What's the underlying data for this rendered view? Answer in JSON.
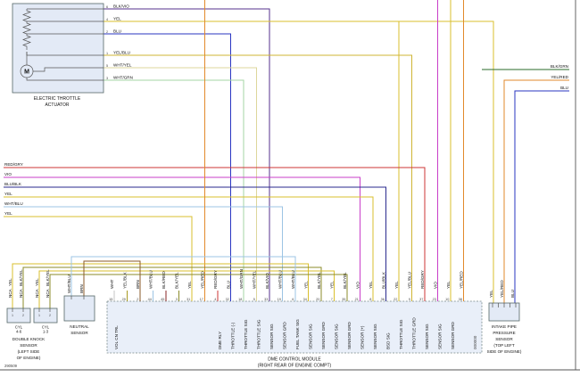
{
  "page": {
    "doc_number": "290509"
  },
  "colors": {
    "wire": {
      "WHT": "#c4c4c4",
      "BRN": "#8a5a2a",
      "YEL": "#d9bf2d",
      "YEL/BLK": "#a89a22",
      "YEL/BLU": "#cfb433",
      "YEL/RED": "#e2892b",
      "BLU": "#2a35c2",
      "BLU/BLK": "#2a2a8e",
      "BLU/YEL": "#3a55cc",
      "WHT/BLU": "#9cc4e4",
      "WHT/YEL": "#ddd79b",
      "WHT/GRN": "#a5d6a5",
      "BLK/VIO": "#56318c",
      "BLK/YEL": "#8b8b2a",
      "BLK/RED": "#8a2525",
      "BLK/GRN": "#2a6b2a",
      "RED/GRY": "#cd3535",
      "VIO": "#c93fc9"
    }
  },
  "throttle_actuator": {
    "label_lines": [
      "ELECTRIC THROTTLE",
      "ACTUATOR"
    ],
    "motor_label": "M",
    "pins": [
      {
        "num": "6",
        "color": "BLK/VIO"
      },
      {
        "num": "4",
        "color": "YEL"
      },
      {
        "num": "2",
        "color": "BLU"
      },
      {
        "num": "1",
        "color": "YEL/BLU"
      },
      {
        "num": "5",
        "color": "WHT/YEL"
      },
      {
        "num": "3",
        "color": "WHT/GRN"
      }
    ]
  },
  "mid_wires": [
    "RED/GRY",
    "VIO",
    "BLU/BLK",
    "YEL",
    "WHT/BLU",
    "YEL"
  ],
  "right_stubs": [
    "BLK/GRN",
    "YEL/RED",
    "BLU"
  ],
  "knock_sensor": {
    "title_lines": [
      "DOUBLE KNOCK",
      "SENSOR",
      "(LEFT SIDE",
      "OF ENGINE)"
    ],
    "cyl_labels": [
      [
        "CYL",
        "4-6"
      ],
      [
        "CYL",
        "1-3"
      ]
    ],
    "nca": "NCA",
    "pin_nums": [
      "1",
      "2",
      "1",
      "2"
    ],
    "wire_labels": [
      "YEL",
      "BLK/YEL",
      "YEL",
      "BLK/YEL"
    ]
  },
  "neutral_sensor": {
    "title_lines": [
      "NEUTRAL",
      "SENSOR"
    ],
    "wire_labels": [
      "WHT/BLU",
      "BRN"
    ]
  },
  "dme": {
    "title_lines": [
      "DME CONTROL MODULE",
      "(RIGHT REAR OF ENGINE COMPT)"
    ],
    "station": "000000",
    "pins": [
      {
        "num": "15",
        "color": "WHT",
        "func": "VOL CN TRL"
      },
      {
        "num": "29",
        "color": "YEL/BLK",
        "func": ""
      },
      {
        "num": "2",
        "color": "BRN",
        "func": ""
      },
      {
        "num": "44",
        "color": "WHT/BLU",
        "func": ""
      },
      {
        "num": "45",
        "color": "BLK/RED",
        "func": ""
      },
      {
        "num": "3",
        "color": "BLK/YEL",
        "func": ""
      },
      {
        "num": "31",
        "color": "YEL",
        "func": ""
      },
      {
        "num": "17",
        "color": "YEL/RED",
        "func": ""
      },
      {
        "num": "4",
        "color": "RED/GRY",
        "func": "DME RLY"
      },
      {
        "num": "32",
        "color": "BLU",
        "func": "THROTTLE (-)"
      },
      {
        "num": "18",
        "color": "WHT/GRN",
        "func": "THROTTLE SIG"
      },
      {
        "num": "5",
        "color": "WHT/YEL",
        "func": "THROTTLE SIG"
      },
      {
        "num": "33",
        "color": "BLK/VIO",
        "func": "SENSOR SIG"
      },
      {
        "num": "19",
        "color": "WHT/BLU",
        "func": "SENSOR GRD"
      },
      {
        "num": "6",
        "color": "WHT/BLU",
        "func": "FUEL TANK SIG"
      },
      {
        "num": "34",
        "color": "YEL",
        "func": "SENSOR SIG"
      },
      {
        "num": "20",
        "color": "BLK/YEL",
        "func": "SENSOR GRD"
      },
      {
        "num": "7",
        "color": "YEL",
        "func": "SENSOR SIG"
      },
      {
        "num": "35",
        "color": "BLK/YEL",
        "func": "SENSOR GRD"
      },
      {
        "num": "21",
        "color": "VIO",
        "func": "SENSOR (+)"
      },
      {
        "num": "8",
        "color": "YEL",
        "func": "SENSOR SIG"
      },
      {
        "num": "36",
        "color": "BLU/BLK",
        "func": "BSD SIG"
      },
      {
        "num": "22",
        "color": "YEL",
        "func": "THROTTLE SIG"
      },
      {
        "num": "9",
        "color": "YEL/BLU",
        "func": "THROTTLE GRD"
      },
      {
        "num": "37",
        "color": "RED/GRY",
        "func": "SENSOR SIG"
      },
      {
        "num": "23",
        "color": "VIO",
        "func": "SENSOR SIG"
      },
      {
        "num": "10",
        "color": "YEL",
        "func": "SENSOR GRD"
      },
      {
        "num": "38",
        "color": "YEL/RED",
        "func": ""
      }
    ]
  },
  "pressure_sensor": {
    "title_lines": [
      "INTAKE PIPE",
      "PRESSURE",
      "SENSOR",
      "(TOP LEFT",
      "SIDE OF ENGINE)"
    ],
    "wire_labels": [
      "YEL",
      "YEL/RED",
      "BLU"
    ]
  }
}
